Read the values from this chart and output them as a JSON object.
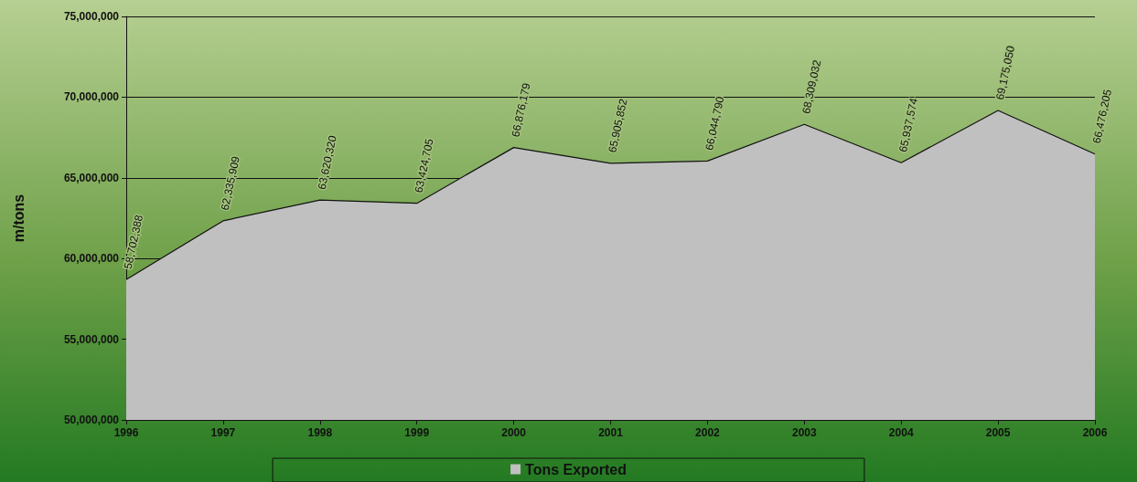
{
  "chart_data": {
    "type": "area",
    "ylabel": "m/tons",
    "categories": [
      "1996",
      "1997",
      "1998",
      "1999",
      "2000",
      "2001",
      "2002",
      "2003",
      "2004",
      "2005",
      "2006"
    ],
    "series": [
      {
        "name": "Tons Exported",
        "color": "#c0c0c0",
        "values": [
          58702388,
          62335909,
          63620320,
          63424705,
          66876179,
          65905852,
          66044790,
          68309032,
          65937574,
          69175050,
          66476205
        ],
        "value_labels": [
          "58,702,388",
          "62,335,909",
          "63,620,320",
          "63,424,705",
          "66,876,179",
          "65,905,852",
          "66,044,790",
          "68,309,032",
          "65,937,574",
          "69,175,050",
          "66,476,205"
        ]
      }
    ],
    "ylim": [
      50000000,
      75000000
    ],
    "yticks": [
      {
        "value": 50000000,
        "label": "50,000,000"
      },
      {
        "value": 55000000,
        "label": "55,000,000"
      },
      {
        "value": 60000000,
        "label": "60,000,000"
      },
      {
        "value": 65000000,
        "label": "65,000,000"
      },
      {
        "value": 70000000,
        "label": "70,000,000"
      },
      {
        "value": 75000000,
        "label": "75,000,000"
      }
    ],
    "grid": "y",
    "legend": "bottom",
    "marker": "none",
    "data_labels": true
  }
}
